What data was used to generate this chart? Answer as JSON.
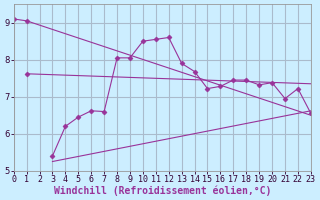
{
  "title": "",
  "xlabel": "Windchill (Refroidissement éolien,°C)",
  "background_color": "#cceeff",
  "grid_color": "#aaddcc",
  "line_color": "#993399",
  "xlim": [
    0,
    23
  ],
  "ylim": [
    5,
    9.5
  ],
  "yticks": [
    5,
    6,
    7,
    8,
    9
  ],
  "xticks": [
    0,
    1,
    2,
    3,
    4,
    5,
    6,
    7,
    8,
    9,
    10,
    11,
    12,
    13,
    14,
    15,
    16,
    17,
    18,
    19,
    20,
    21,
    22,
    23
  ],
  "line1_x": [
    0,
    1,
    23
  ],
  "line1_y": [
    9.1,
    9.05,
    6.5
  ],
  "line1_markers": [
    0,
    1
  ],
  "line2_x": [
    1,
    23
  ],
  "line2_y": [
    7.62,
    7.35
  ],
  "line2_markers": [
    1
  ],
  "line3_x": [
    3,
    4,
    5,
    6,
    7,
    8,
    9,
    10,
    11,
    12,
    13,
    14,
    15,
    16,
    17,
    18,
    19,
    20,
    21,
    22,
    23
  ],
  "line3_y": [
    5.4,
    6.2,
    6.45,
    6.62,
    6.6,
    8.05,
    8.05,
    8.5,
    8.55,
    8.6,
    7.9,
    7.68,
    7.22,
    7.28,
    7.45,
    7.45,
    7.32,
    7.38,
    6.95,
    7.22,
    6.55
  ],
  "line4_x": [
    3,
    23
  ],
  "line4_y": [
    5.25,
    6.62
  ],
  "tick_fontsize": 6,
  "xlabel_fontsize": 7,
  "marker_size": 2.5
}
